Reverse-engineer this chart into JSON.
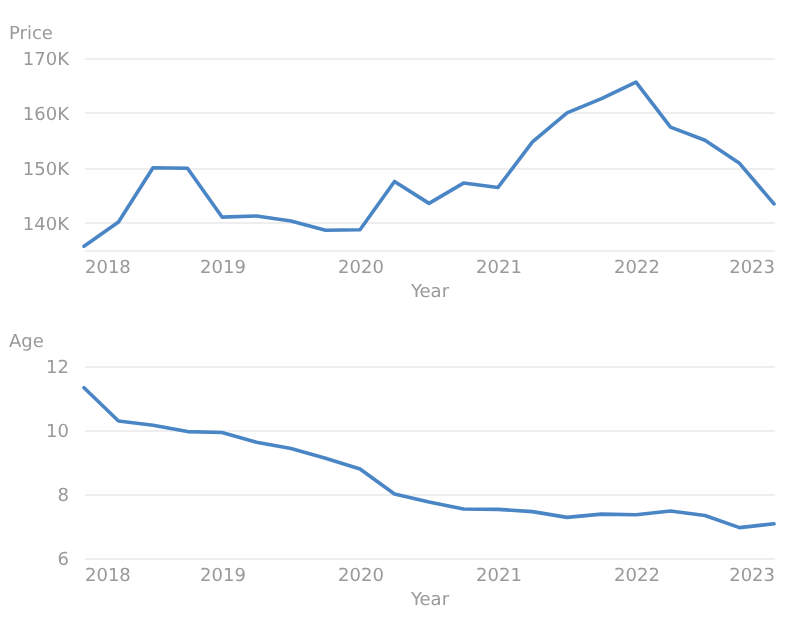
{
  "chart_data": [
    {
      "type": "line",
      "ylabel": "Price",
      "xlabel": "Year",
      "x": [
        2018,
        2018.25,
        2018.5,
        2018.75,
        2019,
        2019.25,
        2019.5,
        2019.75,
        2020,
        2020.25,
        2020.5,
        2020.75,
        2021,
        2021.25,
        2021.5,
        2021.75,
        2022,
        2022.25,
        2022.5,
        2022.75,
        2023
      ],
      "series": [
        {
          "color": "#4a86c5",
          "values": [
            135700,
            140100,
            150000,
            149900,
            141000,
            141200,
            140300,
            138600,
            138700,
            147500,
            143500,
            147200,
            146400,
            154700,
            160000,
            162600,
            165600,
            157400,
            155000,
            150800,
            143400
          ]
        }
      ],
      "xlim": [
        2018,
        2023
      ],
      "xticks": [
        2018,
        2019,
        2020,
        2021,
        2022,
        2023
      ],
      "ylim": [
        135000,
        170000
      ],
      "yticks": [
        {
          "value": 140000,
          "label": "140K"
        },
        {
          "value": 150000,
          "label": "150K"
        },
        {
          "value": 160000,
          "label": "160K"
        },
        {
          "value": 170000,
          "label": "170K"
        }
      ],
      "grid": "y",
      "marker": "none",
      "line_style": "solid"
    },
    {
      "type": "line",
      "ylabel": "Age",
      "xlabel": "Year",
      "x": [
        2018,
        2018.25,
        2018.5,
        2018.75,
        2019,
        2019.25,
        2019.5,
        2019.75,
        2020,
        2020.25,
        2020.5,
        2020.75,
        2021,
        2021.25,
        2021.5,
        2021.75,
        2022,
        2022.25,
        2022.5,
        2022.75,
        2023
      ],
      "series": [
        {
          "color": "#4a86c5",
          "values": [
            11.32,
            10.28,
            10.15,
            9.95,
            9.92,
            9.62,
            9.42,
            9.12,
            8.78,
            8.0,
            7.75,
            7.53,
            7.52,
            7.45,
            7.27,
            7.37,
            7.35,
            7.47,
            7.33,
            6.95,
            7.07
          ]
        }
      ],
      "xlim": [
        2018,
        2023
      ],
      "xticks": [
        2018,
        2019,
        2020,
        2021,
        2022,
        2023
      ],
      "ylim": [
        6,
        12
      ],
      "yticks": [
        6,
        8,
        10,
        12
      ],
      "grid": "y",
      "marker": "none",
      "line_style": "solid"
    }
  ]
}
